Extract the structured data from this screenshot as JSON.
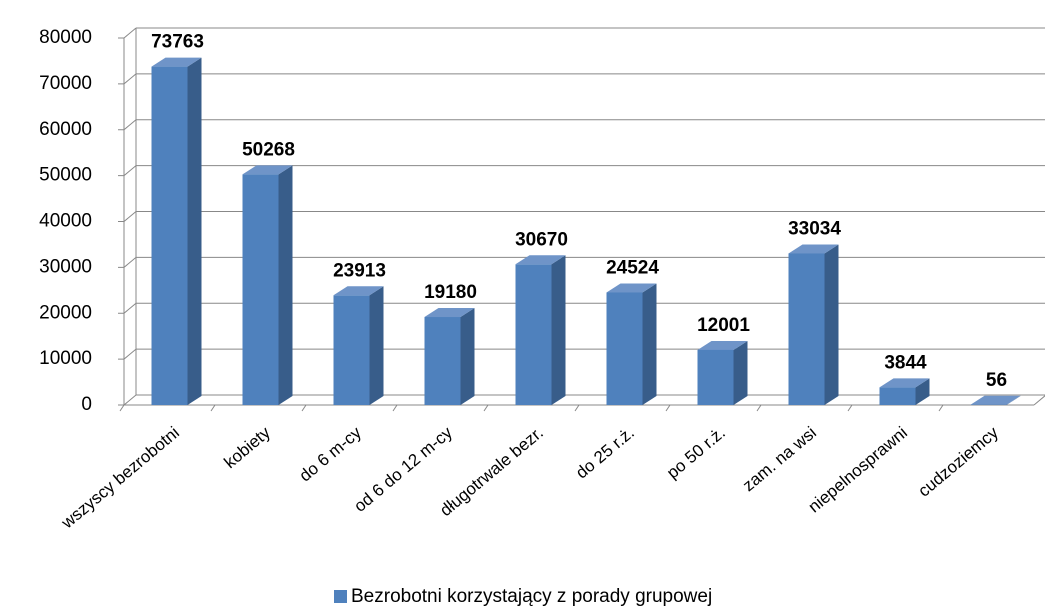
{
  "chart_data": {
    "type": "bar3d",
    "categories": [
      "wszyscy bezrobotni",
      "kobiety",
      "do 6 m-cy",
      "od 6 do 12 m-cy",
      "długotrwale bezr.",
      "do 25 r.ż.",
      "po 50 r.ż.",
      "zam. na wsi",
      "niepelnosprawni",
      "cudzoziemcy"
    ],
    "series": [
      {
        "name": "Bezrobotni korzystający z porady grupowej",
        "color": "#4f81bd",
        "values": [
          73763,
          50268,
          23913,
          19180,
          30670,
          24524,
          12001,
          33034,
          3844,
          56
        ]
      }
    ],
    "ylim": [
      0,
      80000
    ],
    "yticks": [
      0,
      10000,
      20000,
      30000,
      40000,
      50000,
      60000,
      70000,
      80000
    ],
    "grid": true,
    "legend": "bottom"
  }
}
